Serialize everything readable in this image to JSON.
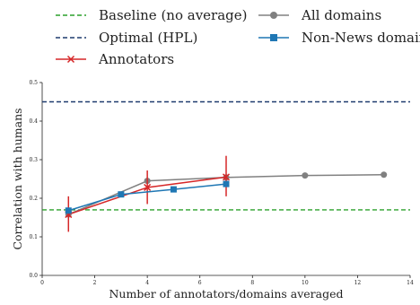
{
  "chart_data": {
    "type": "line",
    "xlabel": "Number of annotators/domains averaged",
    "ylabel": "Correlation with humans",
    "xlim": [
      0,
      14
    ],
    "ylim": [
      0,
      0.5
    ],
    "xticks": [
      0,
      2,
      4,
      6,
      8,
      10,
      12,
      14
    ],
    "yticks": [
      0.0,
      0.1,
      0.2,
      0.3,
      0.4,
      0.5
    ],
    "xtick_labels": [
      "0",
      "2",
      "4",
      "6",
      "8",
      "10",
      "12",
      "14"
    ],
    "ytick_labels": [
      "0.0",
      "0.1",
      "0.2",
      "0.3",
      "0.4",
      "0.5"
    ],
    "grid": false,
    "legend_position": "top",
    "hlines": [
      {
        "name": "Baseline (no average)",
        "y": 0.17,
        "color": "#2ca02c",
        "style": "dashed"
      },
      {
        "name": "Optimal (HPL)",
        "y": 0.45,
        "color": "#1f3b6e",
        "style": "dashed"
      }
    ],
    "series": [
      {
        "name": "Annotators",
        "color": "#d62728",
        "marker": "x",
        "x": [
          1,
          4,
          7
        ],
        "values": [
          0.158,
          0.228,
          0.255
        ],
        "error_low": [
          0.113,
          0.185,
          0.205
        ],
        "error_high": [
          0.205,
          0.272,
          0.31
        ]
      },
      {
        "name": "All domains",
        "color": "#808080",
        "marker": "circle",
        "x": [
          1,
          4,
          7,
          10,
          13
        ],
        "values": [
          0.158,
          0.245,
          0.254,
          0.259,
          0.261
        ]
      },
      {
        "name": "Non-News domains",
        "color": "#1f77b4",
        "marker": "square",
        "x": [
          1,
          3,
          5,
          7
        ],
        "values": [
          0.168,
          0.21,
          0.223,
          0.237
        ]
      }
    ]
  }
}
